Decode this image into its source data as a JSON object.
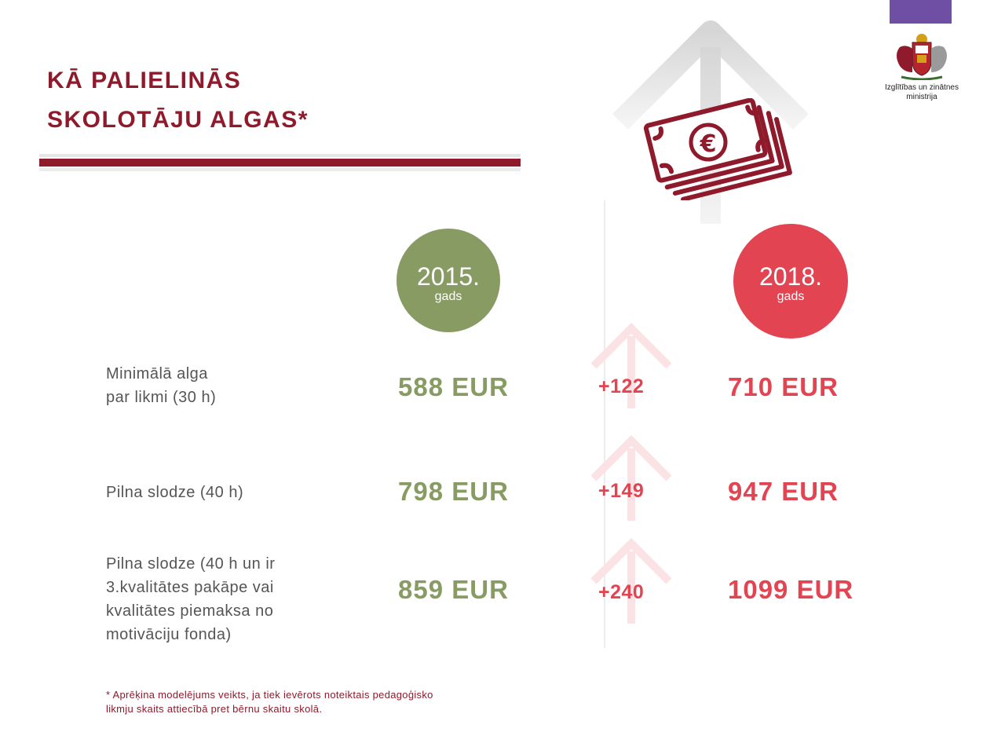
{
  "header": {
    "title_line1": "KĀ PALIELINĀS",
    "title_line2": "SKOLOTĀJU ALGAS*",
    "logo_text_line1": "Izglītības un zinātnes",
    "logo_text_line2": "ministrija",
    "logo_icon": "coat-of-arms-icon"
  },
  "years": [
    {
      "year": "2015.",
      "sub": "gads",
      "color": "#879b63"
    },
    {
      "year": "2018.",
      "sub": "gads",
      "color": "#e24452"
    }
  ],
  "rows": [
    {
      "label_lines": [
        "Minimālā alga",
        "par likmi (30 h)"
      ],
      "v2015": "588 EUR",
      "diff": "+122",
      "v2018": "710 EUR"
    },
    {
      "label_lines": [
        "Pilna slodze (40 h)"
      ],
      "v2015": "798 EUR",
      "diff": "+149",
      "v2018": "947 EUR"
    },
    {
      "label_lines": [
        "Pilna slodze (40 h un ir",
        "3.kvalitātes pakāpe vai",
        "kvalitātes piemaksa no",
        "motivāciju fonda)"
      ],
      "v2015": "859 EUR",
      "diff": "+240",
      "v2018": "1099 EUR"
    }
  ],
  "footnote": {
    "line1": "* Aprēķina modelējums veikts, ja tiek ievērots noteiktais pedagoģisko",
    "line2": "likmju skaits attiecībā pret bērnu skaitu skolā."
  },
  "colors": {
    "title": "#8e1a2b",
    "green": "#879b63",
    "red": "#e24452",
    "purple": "#6f4fa3"
  },
  "icons": [
    "up-arrow-icon",
    "money-stack-icon",
    "euro-icon"
  ]
}
